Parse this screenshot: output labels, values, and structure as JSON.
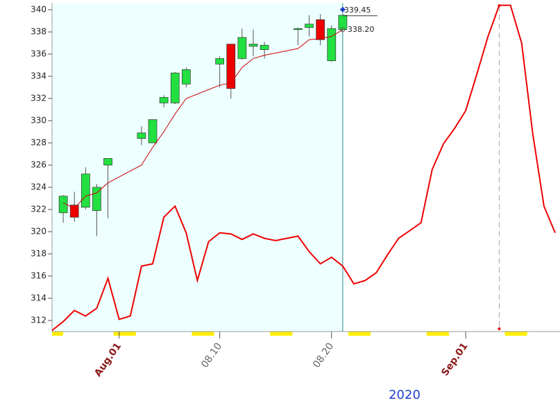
{
  "chart_data": {
    "type": "candlestick",
    "year": "2020",
    "x": [
      "07.27",
      "07.28",
      "07.29",
      "07.30",
      "07.31",
      "08.03",
      "08.04",
      "08.05",
      "08.06",
      "08.07",
      "08.10",
      "08.11",
      "08.12",
      "08.13",
      "08.14",
      "08.17",
      "08.18",
      "08.19",
      "08.20",
      "08.21"
    ],
    "open": [
      321.7,
      322.4,
      322.2,
      321.9,
      326.0,
      328.4,
      328.0,
      331.6,
      331.6,
      333.3,
      335.1,
      336.9,
      335.6,
      336.7,
      336.4,
      338.3,
      338.4,
      339.1,
      335.4,
      338.2
    ],
    "high": [
      323.3,
      323.6,
      325.8,
      324.3,
      326.6,
      329.5,
      330.1,
      332.3,
      334.4,
      334.8,
      335.8,
      336.9,
      338.3,
      338.2,
      337.1,
      338.4,
      339.5,
      339.6,
      338.6,
      339.5
    ],
    "low": [
      320.8,
      320.9,
      322.0,
      319.6,
      321.2,
      327.8,
      328.0,
      331.2,
      331.5,
      333.0,
      333.0,
      332.0,
      335.5,
      335.8,
      335.6,
      336.8,
      337.6,
      336.8,
      335.3,
      338.2
    ],
    "close": [
      323.2,
      321.3,
      325.2,
      324.0,
      326.6,
      328.9,
      330.1,
      332.1,
      334.3,
      334.6,
      335.6,
      332.9,
      337.5,
      336.9,
      336.8,
      338.3,
      338.7,
      337.3,
      338.3,
      339.5
    ],
    "up_color": "#22e040",
    "down_color": "#ee0000",
    "series": [
      {
        "type": "line",
        "color": "#cc0000",
        "width": 1,
        "values": [
          322.6,
          322.1,
          323.2,
          323.5,
          324.4,
          326.0,
          327.6,
          329.0,
          330.6,
          332.0,
          333.2,
          333.4,
          334.8,
          335.6,
          335.9,
          336.5,
          337.3,
          337.4,
          337.6,
          338.2
        ]
      },
      {
        "type": "line",
        "color": "#ee0000",
        "width": 2,
        "x": [
          "07.26",
          "07.27",
          "07.28",
          "07.29",
          "07.30",
          "07.31",
          "08.01",
          "08.02",
          "08.03",
          "08.04",
          "08.05",
          "08.06",
          "08.07",
          "08.08",
          "08.09",
          "08.10",
          "08.11",
          "08.12",
          "08.13",
          "08.14",
          "08.15",
          "08.16",
          "08.17",
          "08.18",
          "08.19",
          "08.20",
          "08.21",
          "08.22",
          "08.23",
          "08.24",
          "08.25",
          "08.26",
          "08.27",
          "08.28",
          "08.29",
          "08.30",
          "08.31",
          "09.01",
          "09.02",
          "09.03",
          "09.04",
          "09.05",
          "09.06",
          "09.07",
          "09.08",
          "09.09"
        ],
        "values": [
          311.1,
          311.9,
          312.9,
          312.4,
          313.1,
          315.8,
          312.1,
          312.4,
          316.9,
          317.1,
          321.3,
          322.3,
          319.9,
          315.6,
          319.1,
          319.9,
          319.8,
          319.3,
          319.8,
          319.4,
          319.2,
          319.4,
          319.6,
          318.2,
          317.1,
          317.7,
          316.9,
          315.3,
          315.6,
          316.3,
          317.9,
          319.4,
          320.1,
          320.8,
          325.6,
          327.9,
          329.3,
          330.9,
          334.2,
          337.6,
          340.4,
          340.4,
          337.0,
          328.8,
          322.3,
          319.9
        ]
      }
    ],
    "annotations": {
      "x": [
        "08.21",
        "08.21"
      ],
      "values": [
        339.45,
        338.2
      ],
      "value_labels": [
        "339.45",
        "338.20"
      ]
    },
    "shade_until": "08.21",
    "shade_color": "#eeffff",
    "marker_line": "09.04",
    "xlim": [
      "07.26",
      "09.09"
    ],
    "ylim": [
      311.0,
      340.6
    ],
    "yticks": [
      312,
      314,
      316,
      318,
      320,
      322,
      324,
      326,
      328,
      330,
      332,
      334,
      336,
      338,
      340
    ],
    "xticks": [
      {
        "value": "08.01",
        "label": "Aug.01"
      },
      "08.10",
      "08.20",
      {
        "value": "09.01",
        "label": "Sep.01"
      }
    ]
  }
}
